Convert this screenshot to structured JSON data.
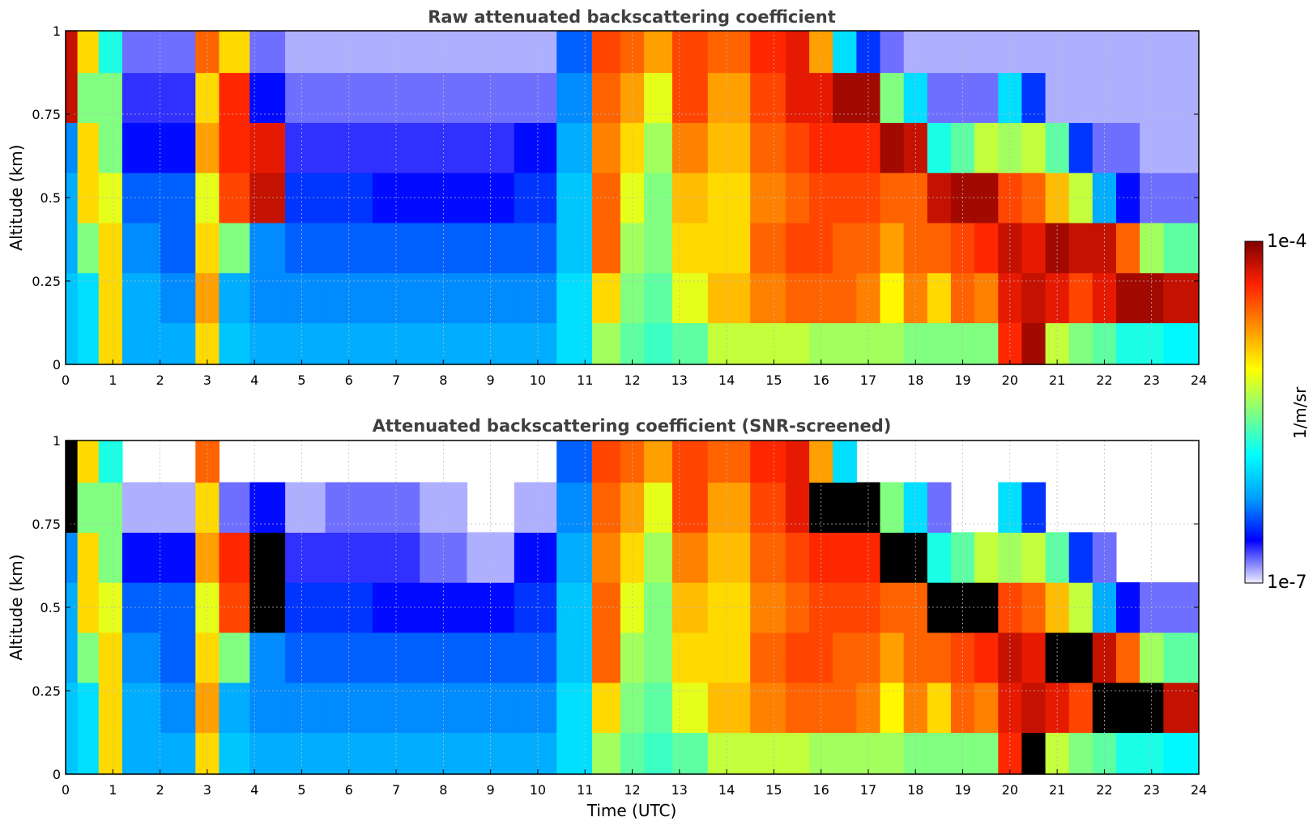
{
  "chart_data": [
    {
      "type": "heatmap",
      "title": "Raw attenuated backscattering coefficient",
      "xlabel": "",
      "ylabel": "Altitude (km)",
      "xlim": [
        0,
        24
      ],
      "ylim": [
        0,
        1
      ],
      "x_ticks": [
        "0",
        "1",
        "2",
        "3",
        "4",
        "5",
        "6",
        "7",
        "8",
        "9",
        "10",
        "11",
        "12",
        "13",
        "14",
        "15",
        "16",
        "17",
        "18",
        "19",
        "20",
        "21",
        "22",
        "23",
        "24"
      ],
      "y_ticks": [
        "0",
        "0.25",
        "0.5",
        "0.75",
        "1"
      ],
      "grid": true,
      "colorscale": "jet",
      "value_range_log10": [
        -7,
        -4
      ],
      "x_hours": [
        0,
        0.5,
        0.9,
        1.5,
        2.5,
        3.0,
        3.5,
        4.3,
        5.0,
        6.0,
        7.0,
        8.0,
        9.0,
        10.0,
        10.8,
        11.5,
        12.0,
        12.5,
        13.2,
        14.0,
        15.0,
        15.5,
        16.0,
        16.5,
        17.0,
        17.5,
        18.0,
        18.5,
        19.0,
        19.5,
        20.0,
        20.5,
        21.0,
        21.5,
        22.0,
        22.5,
        23.0,
        23.5
      ],
      "y_km": [
        0.05,
        0.2,
        0.35,
        0.5,
        0.65,
        0.8,
        0.95
      ],
      "log10_values": [
        [
          -6.1,
          -6.1,
          -6.2,
          -6.2,
          -6.3,
          -4.2,
          -4.2
        ],
        [
          -6.0,
          -6.0,
          -5.5,
          -5.0,
          -5.0,
          -5.5,
          -5.0
        ],
        [
          -5.0,
          -5.0,
          -5.0,
          -5.2,
          -5.5,
          -5.5,
          -5.8
        ],
        [
          -6.2,
          -6.2,
          -6.3,
          -6.4,
          -6.6,
          -6.7,
          -6.8
        ],
        [
          -6.2,
          -6.3,
          -6.4,
          -6.4,
          -6.6,
          -6.7,
          -6.8
        ],
        [
          -5.0,
          -4.8,
          -5.0,
          -5.2,
          -4.8,
          -5.0,
          -4.6
        ],
        [
          -6.1,
          -6.2,
          -5.5,
          -4.5,
          -4.4,
          -4.4,
          -5.0
        ],
        [
          -6.2,
          -6.3,
          -6.3,
          -4.2,
          -4.3,
          -6.6,
          -6.8
        ],
        [
          -6.2,
          -6.3,
          -6.4,
          -6.5,
          -6.7,
          -6.8,
          -6.9
        ],
        [
          -6.2,
          -6.3,
          -6.4,
          -6.5,
          -6.7,
          -6.8,
          -6.9
        ],
        [
          -6.2,
          -6.3,
          -6.4,
          -6.6,
          -6.7,
          -6.8,
          -6.9
        ],
        [
          -6.2,
          -6.3,
          -6.4,
          -6.6,
          -6.7,
          -6.8,
          -6.9
        ],
        [
          -6.2,
          -6.3,
          -6.4,
          -6.6,
          -6.7,
          -6.8,
          -6.9
        ],
        [
          -6.2,
          -6.3,
          -6.4,
          -6.5,
          -6.6,
          -6.8,
          -6.9
        ],
        [
          -6.0,
          -6.0,
          -6.1,
          -6.1,
          -6.2,
          -6.3,
          -6.4
        ],
        [
          -5.4,
          -5.0,
          -4.6,
          -4.6,
          -4.7,
          -4.6,
          -4.5
        ],
        [
          -5.6,
          -5.5,
          -5.4,
          -5.2,
          -5.0,
          -4.8,
          -4.6
        ],
        [
          -5.7,
          -5.6,
          -5.5,
          -5.5,
          -5.4,
          -5.2,
          -4.8
        ],
        [
          -5.6,
          -5.2,
          -5.0,
          -4.9,
          -4.7,
          -4.5,
          -4.5
        ],
        [
          -5.3,
          -4.9,
          -5.0,
          -5.0,
          -4.9,
          -4.8,
          -4.6
        ],
        [
          -5.3,
          -4.7,
          -4.6,
          -4.7,
          -4.6,
          -4.5,
          -4.4
        ],
        [
          -5.3,
          -4.6,
          -4.5,
          -4.6,
          -4.5,
          -4.3,
          -4.3
        ],
        [
          -5.4,
          -4.6,
          -4.5,
          -4.5,
          -4.4,
          -4.3,
          -4.8
        ],
        [
          -5.4,
          -4.6,
          -4.6,
          -4.5,
          -4.4,
          -4.1,
          -6.0
        ],
        [
          -5.4,
          -4.7,
          -4.6,
          -4.5,
          -4.4,
          -4.1,
          -6.5
        ],
        [
          -5.4,
          -5.1,
          -4.8,
          -4.6,
          -4.1,
          -5.5,
          -6.8
        ],
        [
          -5.5,
          -4.7,
          -4.6,
          -4.6,
          -4.2,
          -6.0,
          -6.9
        ],
        [
          -5.5,
          -5.0,
          -4.6,
          -4.2,
          -5.8,
          -6.8,
          -6.9
        ],
        [
          -5.5,
          -4.6,
          -4.5,
          -4.1,
          -5.6,
          -6.8,
          -6.9
        ],
        [
          -5.5,
          -4.7,
          -4.4,
          -4.1,
          -5.3,
          -6.8,
          -6.9
        ],
        [
          -4.4,
          -4.3,
          -4.2,
          -4.5,
          -5.4,
          -6.0,
          -6.9
        ],
        [
          -4.1,
          -4.2,
          -4.3,
          -4.6,
          -5.3,
          -6.5,
          -6.9
        ],
        [
          -5.3,
          -4.3,
          -4.1,
          -4.9,
          -5.6,
          -6.9,
          -6.9
        ],
        [
          -5.5,
          -4.5,
          -4.2,
          -5.3,
          -6.5,
          -6.9,
          -6.9
        ],
        [
          -5.6,
          -4.3,
          -4.2,
          -6.2,
          -6.8,
          -6.9,
          -6.9
        ],
        [
          -5.8,
          -4.1,
          -4.6,
          -6.6,
          -6.8,
          -6.9,
          -6.9
        ],
        [
          -5.8,
          -4.1,
          -5.4,
          -6.8,
          -6.9,
          -6.9,
          -6.9
        ],
        [
          -5.9,
          -4.2,
          -5.6,
          -6.8,
          -6.9,
          -6.9,
          -6.9
        ]
      ]
    },
    {
      "type": "heatmap",
      "title": "Attenuated backscattering coefficient (SNR-screened)",
      "xlabel": "Time (UTC)",
      "ylabel": "Altitude (km)",
      "xlim": [
        0,
        24
      ],
      "ylim": [
        0,
        1
      ],
      "x_ticks": [
        "0",
        "1",
        "2",
        "3",
        "4",
        "5",
        "6",
        "7",
        "8",
        "9",
        "10",
        "11",
        "12",
        "13",
        "14",
        "15",
        "16",
        "17",
        "18",
        "19",
        "20",
        "21",
        "22",
        "23",
        "24"
      ],
      "y_ticks": [
        "0",
        "0.25",
        "0.5",
        "0.75",
        "1"
      ],
      "grid": true,
      "colorscale": "jet",
      "value_range_log10": [
        -7,
        -4
      ],
      "note_black": "values above colour range shown in black",
      "x_hours": [
        0,
        0.5,
        0.9,
        1.5,
        2.5,
        3.0,
        3.5,
        4.3,
        5.0,
        6.0,
        7.0,
        8.0,
        9.0,
        10.0,
        10.8,
        11.5,
        12.0,
        12.5,
        13.2,
        14.0,
        15.0,
        15.5,
        16.0,
        16.5,
        17.0,
        17.5,
        18.0,
        18.5,
        19.0,
        19.5,
        20.0,
        20.5,
        21.0,
        21.5,
        22.0,
        22.5,
        23.0,
        23.5
      ],
      "y_km": [
        0.05,
        0.2,
        0.35,
        0.5,
        0.65,
        0.8,
        0.95
      ],
      "log10_values": [
        [
          -6.1,
          -6.1,
          -6.2,
          -6.2,
          -6.3,
          -3.5,
          -3.5
        ],
        [
          -6.0,
          -6.0,
          -5.5,
          -5.0,
          -5.0,
          -5.5,
          -5.0
        ],
        [
          -5.0,
          -5.0,
          -5.0,
          -5.2,
          -5.5,
          -5.5,
          -5.8
        ],
        [
          -6.2,
          -6.2,
          -6.3,
          -6.4,
          -6.6,
          -6.9,
          null
        ],
        [
          -6.2,
          -6.3,
          -6.4,
          -6.4,
          -6.6,
          -6.9,
          null
        ],
        [
          -5.0,
          -4.8,
          -5.0,
          -5.2,
          -4.8,
          -5.0,
          -4.6
        ],
        [
          -6.1,
          -6.2,
          -5.5,
          -4.5,
          -4.4,
          -6.8,
          null
        ],
        [
          -6.2,
          -6.3,
          -6.3,
          -3.6,
          -3.8,
          -6.6,
          null
        ],
        [
          -6.2,
          -6.3,
          -6.4,
          -6.5,
          -6.7,
          -6.9,
          null
        ],
        [
          -6.2,
          -6.3,
          -6.4,
          -6.5,
          -6.7,
          -6.8,
          null
        ],
        [
          -6.2,
          -6.3,
          -6.4,
          -6.6,
          -6.7,
          -6.8,
          null
        ],
        [
          -6.2,
          -6.3,
          -6.4,
          -6.6,
          -6.8,
          -6.9,
          null
        ],
        [
          -6.2,
          -6.3,
          -6.4,
          -6.6,
          -6.9,
          null,
          null
        ],
        [
          -6.2,
          -6.3,
          -6.4,
          -6.5,
          -6.6,
          -6.9,
          null
        ],
        [
          -6.0,
          -6.0,
          -6.1,
          -6.1,
          -6.2,
          -6.3,
          -6.4
        ],
        [
          -5.4,
          -5.0,
          -4.6,
          -4.6,
          -4.7,
          -4.6,
          -4.5
        ],
        [
          -5.6,
          -5.5,
          -5.4,
          -5.2,
          -5.0,
          -4.8,
          -4.6
        ],
        [
          -5.7,
          -5.6,
          -5.5,
          -5.5,
          -5.4,
          -5.2,
          -4.8
        ],
        [
          -5.6,
          -5.2,
          -5.0,
          -4.9,
          -4.7,
          -4.5,
          -4.5
        ],
        [
          -5.3,
          -4.9,
          -5.0,
          -5.0,
          -4.9,
          -4.8,
          -4.6
        ],
        [
          -5.3,
          -4.7,
          -4.6,
          -4.7,
          -4.6,
          -4.5,
          -4.4
        ],
        [
          -5.3,
          -4.6,
          -4.5,
          -4.6,
          -4.5,
          -4.3,
          -4.3
        ],
        [
          -5.4,
          -4.6,
          -4.5,
          -4.5,
          -4.4,
          -3.6,
          -4.8
        ],
        [
          -5.4,
          -4.6,
          -4.6,
          -4.5,
          -4.4,
          -3.6,
          -6.0
        ],
        [
          -5.4,
          -4.7,
          -4.6,
          -4.5,
          -4.4,
          -3.6,
          null
        ],
        [
          -5.4,
          -5.1,
          -4.8,
          -4.6,
          -3.6,
          -5.5,
          null
        ],
        [
          -5.5,
          -4.7,
          -4.6,
          -4.6,
          -3.6,
          -6.0,
          null
        ],
        [
          -5.5,
          -5.0,
          -4.6,
          -3.6,
          -5.8,
          -6.8,
          null
        ],
        [
          -5.5,
          -4.6,
          -4.5,
          -3.6,
          -5.6,
          null,
          null
        ],
        [
          -5.5,
          -4.7,
          -4.4,
          -3.6,
          -5.3,
          null,
          null
        ],
        [
          -4.4,
          -4.3,
          -4.2,
          -4.5,
          -5.4,
          -6.0,
          null
        ],
        [
          -3.6,
          -4.2,
          -4.3,
          -4.6,
          -5.3,
          -6.5,
          null
        ],
        [
          -5.3,
          -4.3,
          -3.6,
          -4.9,
          -5.6,
          null,
          null
        ],
        [
          -5.5,
          -4.5,
          -3.6,
          -5.3,
          -6.5,
          null,
          null
        ],
        [
          -5.6,
          -3.6,
          -4.2,
          -6.2,
          -6.8,
          null,
          null
        ],
        [
          -5.8,
          -3.6,
          -4.6,
          -6.6,
          null,
          null,
          null
        ],
        [
          -5.8,
          -3.6,
          -5.4,
          -6.8,
          null,
          null,
          null
        ],
        [
          -5.9,
          -4.2,
          -5.6,
          -6.8,
          null,
          null,
          null
        ]
      ]
    }
  ],
  "colorbar": {
    "max_label": "1e-4",
    "min_label": "1e-7",
    "unit_label": "1/m/sr",
    "colors": [
      "#eeeeff",
      "#0000ff",
      "#00a0ff",
      "#00ffff",
      "#80ff80",
      "#ffff00",
      "#ff9000",
      "#ff2000",
      "#800000"
    ],
    "over_color": "#000000"
  }
}
